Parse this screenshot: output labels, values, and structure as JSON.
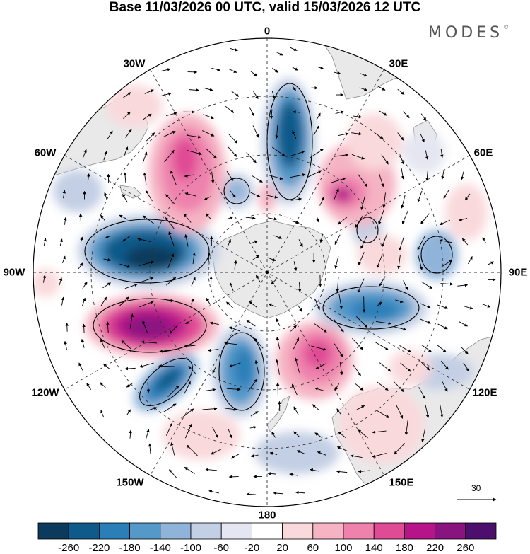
{
  "title": "Base 11/03/2026 00 UTC, valid 15/03/2026 12 UTC",
  "brand": {
    "name": "MODES",
    "mark": "©"
  },
  "map": {
    "projection": "south polar stereographic",
    "longitude_labels": [
      "0",
      "30E",
      "60E",
      "90E",
      "120E",
      "150E",
      "180",
      "150W",
      "120W",
      "90W",
      "60W",
      "30W"
    ]
  },
  "vector_reference": {
    "value": "30",
    "icon": "arrow-right-icon"
  },
  "colorbar": {
    "colors": [
      "#0b3a5c",
      "#0e5a8a",
      "#2b7fb8",
      "#5599c9",
      "#8fb3d9",
      "#c3cfe4",
      "#e4e6f1",
      "#ffffff",
      "#f9d9dc",
      "#f5b3c3",
      "#ee82ad",
      "#e04b95",
      "#b8148a",
      "#891480",
      "#4c0f6d"
    ],
    "labels": [
      "-260",
      "-220",
      "-180",
      "-140",
      "-100",
      "-60",
      "-20",
      "20",
      "60",
      "100",
      "140",
      "180",
      "220",
      "260"
    ]
  },
  "colors": {
    "land": "#e9e9ea",
    "coast": "#8a8a8a",
    "grid": "#333333",
    "contour": "#000000"
  }
}
